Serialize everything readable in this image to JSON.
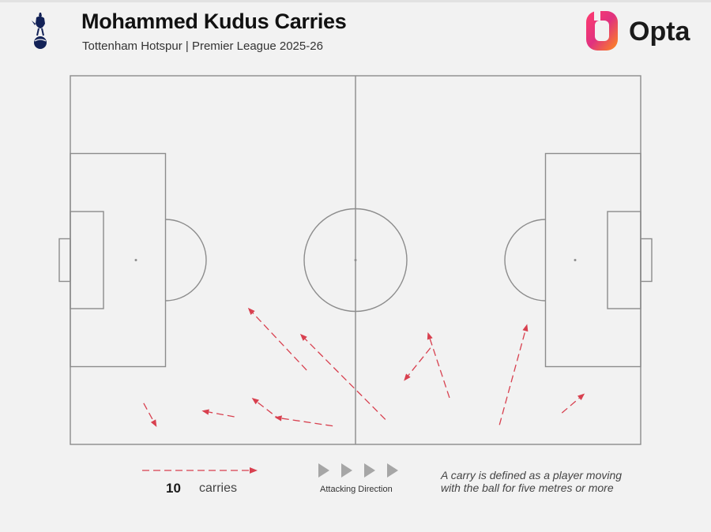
{
  "header": {
    "title": "Mohammed Kudus Carries",
    "subtitle": "Tottenham Hotspur | Premier League 2025-26",
    "brand": "Opta",
    "club_crest_icon": "cockerel-crest-icon"
  },
  "legend": {
    "count": "10",
    "count_label": "carries",
    "direction_label": "Attacking Direction",
    "note_line1": "A carry is defined as a player moving",
    "note_line2": "with the ball for five metres or more"
  },
  "colors": {
    "carry": "#d8404f",
    "pitch_lines": "#8c8c8c",
    "background": "#f2f2f2",
    "direction_arrows": "#a6a6a6"
  },
  "chart_data": {
    "type": "scatter",
    "subtype": "pitch-carry-map",
    "title": "Mohammed Kudus Carries",
    "subtitle": "Tottenham Hotspur | Premier League 2025-26",
    "pitch": {
      "length_m": 105,
      "width_m": 68
    },
    "attacking_direction": "left-to-right",
    "carries": [
      {
        "start": [
          13.5,
          7.6
        ],
        "end": [
          15.9,
          3.2
        ]
      },
      {
        "start": [
          30.2,
          5.1
        ],
        "end": [
          24.2,
          6.2
        ]
      },
      {
        "start": [
          38.8,
          4.4
        ],
        "end": [
          33.4,
          8.6
        ]
      },
      {
        "start": [
          48.3,
          3.4
        ],
        "end": [
          37.6,
          5.0
        ]
      },
      {
        "start": [
          43.5,
          13.7
        ],
        "end": [
          32.7,
          25.2
        ]
      },
      {
        "start": [
          58.0,
          4.6
        ],
        "end": [
          42.3,
          20.4
        ]
      },
      {
        "start": [
          69.8,
          8.6
        ],
        "end": [
          65.8,
          20.7
        ]
      },
      {
        "start": [
          66.3,
          17.8
        ],
        "end": [
          61.4,
          11.7
        ]
      },
      {
        "start": [
          79.0,
          3.6
        ],
        "end": [
          84.1,
          22.2
        ]
      },
      {
        "start": [
          90.5,
          5.8
        ],
        "end": [
          94.7,
          9.4
        ]
      }
    ]
  }
}
